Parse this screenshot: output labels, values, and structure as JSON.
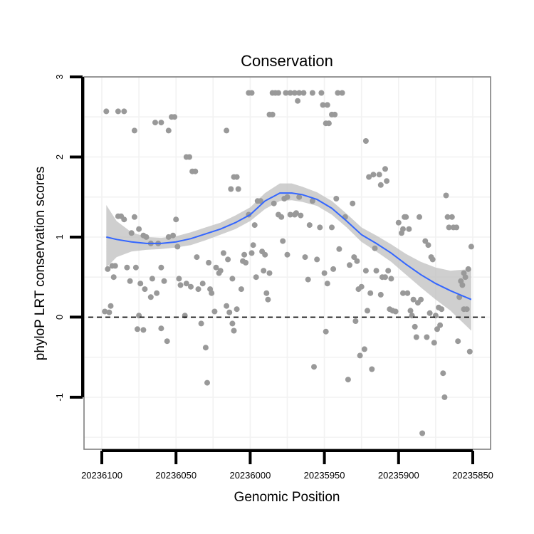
{
  "chart_data": {
    "type": "scatter",
    "title": "Conservation",
    "xlabel": "Genomic Position",
    "ylabel": "phyloP LRT conservation scores",
    "x_reversed": true,
    "xlim": [
      20236112,
      20235838
    ],
    "ylim": [
      -1.65,
      3.0
    ],
    "x_ticks": [
      20236100,
      20236050,
      20236000,
      20235950,
      20235900,
      20235850
    ],
    "x_tick_labels": [
      "20236100",
      "20236050",
      "20236000",
      "20235950",
      "20235900",
      "20235850"
    ],
    "y_ticks": [
      3,
      2,
      1,
      0,
      -1
    ],
    "y_tick_labels": [
      "3",
      "2",
      "1",
      "0",
      "-1"
    ],
    "reference_line": {
      "y": 0,
      "style": "dashed",
      "color": "#000000"
    },
    "colors": {
      "points": "#999999",
      "smooth": "#3366ff",
      "ribbon": "#bdbdbd",
      "grid": "#f2f2f2",
      "frame": "#7f7f7f"
    },
    "points": [
      [
        20236097,
        2.57
      ],
      [
        20236089,
        2.57
      ],
      [
        20236085,
        2.57
      ],
      [
        20236078,
        2.33
      ],
      [
        20236064,
        2.43
      ],
      [
        20236060,
        2.43
      ],
      [
        20236055,
        2.33
      ],
      [
        20236053,
        2.5
      ],
      [
        20236051,
        2.5
      ],
      [
        20236043,
        2.0
      ],
      [
        20236041,
        2.0
      ],
      [
        20236039,
        1.82
      ],
      [
        20236037,
        1.82
      ],
      [
        20236016,
        2.33
      ],
      [
        20236013,
        1.6
      ],
      [
        20236011,
        1.75
      ],
      [
        20236009,
        1.75
      ],
      [
        20236008,
        1.6
      ],
      [
        20236001,
        2.8
      ],
      [
        20235999,
        2.8
      ],
      [
        20235987,
        2.53
      ],
      [
        20235985,
        2.53
      ],
      [
        20235985,
        2.8
      ],
      [
        20235983,
        2.8
      ],
      [
        20235981,
        2.8
      ],
      [
        20235976,
        2.8
      ],
      [
        20235973,
        2.8
      ],
      [
        20235970,
        2.8
      ],
      [
        20235967,
        2.8
      ],
      [
        20235964,
        2.8
      ],
      [
        20235968,
        2.7
      ],
      [
        20235958,
        2.8
      ],
      [
        20235952,
        2.8
      ],
      [
        20235951,
        2.65
      ],
      [
        20235948,
        2.65
      ],
      [
        20235945,
        2.53
      ],
      [
        20235943,
        2.53
      ],
      [
        20235941,
        2.8
      ],
      [
        20235938,
        2.8
      ],
      [
        20235949,
        2.42
      ],
      [
        20235947,
        2.42
      ],
      [
        20235922,
        2.2
      ],
      [
        20235917,
        1.78
      ],
      [
        20235913,
        1.78
      ],
      [
        20235909,
        1.85
      ],
      [
        20235908,
        1.7
      ],
      [
        20235920,
        1.75
      ],
      [
        20235912,
        1.65
      ],
      [
        20236098,
        0.07
      ],
      [
        20236095,
        0.06
      ],
      [
        20236094,
        0.14
      ],
      [
        20236096,
        0.6
      ],
      [
        20236093,
        0.64
      ],
      [
        20236091,
        0.64
      ],
      [
        20236092,
        0.5
      ],
      [
        20236089,
        1.26
      ],
      [
        20236087,
        1.26
      ],
      [
        20236083,
        0.62
      ],
      [
        20236080,
        1.05
      ],
      [
        20236078,
        1.25
      ],
      [
        20236081,
        0.45
      ],
      [
        20236075,
        1.1
      ],
      [
        20236072,
        1.02
      ],
      [
        20236070,
        1.0
      ],
      [
        20236067,
        0.92
      ],
      [
        20236074,
        0.42
      ],
      [
        20236071,
        0.35
      ],
      [
        20236067,
        0.25
      ],
      [
        20236063,
        0.3
      ],
      [
        20236076,
        -0.15
      ],
      [
        20236072,
        -0.16
      ],
      [
        20236075,
        0.02
      ],
      [
        20236060,
        -0.14
      ],
      [
        20236056,
        -0.3
      ],
      [
        20236058,
        0.45
      ],
      [
        20236060,
        0.62
      ],
      [
        20236055,
        1.0
      ],
      [
        20236050,
        1.22
      ],
      [
        20236049,
        0.88
      ],
      [
        20236047,
        0.4
      ],
      [
        20236044,
        0.02
      ],
      [
        20236048,
        0.48
      ],
      [
        20236043,
        0.42
      ],
      [
        20236040,
        0.38
      ],
      [
        20236036,
        0.75
      ],
      [
        20236033,
        -0.08
      ],
      [
        20236032,
        0.42
      ],
      [
        20236030,
        -0.38
      ],
      [
        20236029,
        -0.82
      ],
      [
        20236027,
        0.35
      ],
      [
        20236026,
        0.3
      ],
      [
        20236021,
        0.55
      ],
      [
        20236024,
        0.07
      ],
      [
        20236020,
        0.58
      ],
      [
        20236018,
        0.8
      ],
      [
        20236015,
        0.72
      ],
      [
        20236012,
        0.48
      ],
      [
        20236016,
        0.14
      ],
      [
        20236014,
        0.06
      ],
      [
        20236012,
        -0.08
      ],
      [
        20236011,
        -0.17
      ],
      [
        20236009,
        0.1
      ],
      [
        20236006,
        0.35
      ],
      [
        20236005,
        0.7
      ],
      [
        20236003,
        0.68
      ],
      [
        20236001,
        1.28
      ],
      [
        20235999,
        0.8
      ],
      [
        20235997,
        1.15
      ],
      [
        20235995,
        1.45
      ],
      [
        20235993,
        1.45
      ],
      [
        20235992,
        0.82
      ],
      [
        20235990,
        0.78
      ],
      [
        20235991,
        0.58
      ],
      [
        20235989,
        0.3
      ],
      [
        20235988,
        0.22
      ],
      [
        20235987,
        0.55
      ],
      [
        20235984,
        1.42
      ],
      [
        20235981,
        1.28
      ],
      [
        20235979,
        1.25
      ],
      [
        20235977,
        1.48
      ],
      [
        20235975,
        1.5
      ],
      [
        20235975,
        0.78
      ],
      [
        20235973,
        1.28
      ],
      [
        20235970,
        1.28
      ],
      [
        20235969,
        1.3
      ],
      [
        20235967,
        1.5
      ],
      [
        20235963,
        0.75
      ],
      [
        20235960,
        1.15
      ],
      [
        20235958,
        1.45
      ],
      [
        20235957,
        -0.62
      ],
      [
        20235955,
        0.72
      ],
      [
        20235953,
        1.12
      ],
      [
        20235950,
        0.55
      ],
      [
        20235948,
        0.42
      ],
      [
        20235949,
        -0.18
      ],
      [
        20235945,
        1.12
      ],
      [
        20235942,
        1.48
      ],
      [
        20235936,
        1.25
      ],
      [
        20235933,
        0.65
      ],
      [
        20235931,
        1.42
      ],
      [
        20235934,
        -0.78
      ],
      [
        20235930,
        0.75
      ],
      [
        20235929,
        -0.05
      ],
      [
        20235927,
        0.35
      ],
      [
        20235926,
        -0.48
      ],
      [
        20235925,
        0.38
      ],
      [
        20235923,
        -0.4
      ],
      [
        20235922,
        0.58
      ],
      [
        20235921,
        0.08
      ],
      [
        20235919,
        0.3
      ],
      [
        20235918,
        -0.65
      ],
      [
        20235916,
        0.86
      ],
      [
        20235915,
        0.58
      ],
      [
        20235912,
        0.28
      ],
      [
        20235911,
        0.5
      ],
      [
        20235909,
        0.5
      ],
      [
        20235907,
        0.58
      ],
      [
        20235905,
        0.48
      ],
      [
        20235904,
        0.08
      ],
      [
        20235902,
        0.07
      ],
      [
        20235900,
        1.18
      ],
      [
        20235898,
        1.05
      ],
      [
        20235897,
        1.1
      ],
      [
        20235896,
        1.25
      ],
      [
        20235895,
        1.25
      ],
      [
        20235893,
        1.1
      ],
      [
        20235897,
        0.3
      ],
      [
        20235894,
        0.3
      ],
      [
        20235892,
        0.08
      ],
      [
        20235890,
        0.22
      ],
      [
        20235889,
        -0.12
      ],
      [
        20235888,
        -0.25
      ],
      [
        20235886,
        1.25
      ],
      [
        20235887,
        0.18
      ],
      [
        20235885,
        0.22
      ],
      [
        20235884,
        -1.45
      ],
      [
        20235882,
        0.95
      ],
      [
        20235881,
        -0.25
      ],
      [
        20235880,
        0.9
      ],
      [
        20235879,
        0.05
      ],
      [
        20235878,
        0.75
      ],
      [
        20235877,
        0.72
      ],
      [
        20235876,
        -0.32
      ],
      [
        20235875,
        0.02
      ],
      [
        20235873,
        0.12
      ],
      [
        20235871,
        0.1
      ],
      [
        20235870,
        -0.7
      ],
      [
        20235869,
        -1.0
      ],
      [
        20235868,
        1.52
      ],
      [
        20235867,
        1.25
      ],
      [
        20235866,
        1.12
      ],
      [
        20235864,
        1.25
      ],
      [
        20235863,
        1.12
      ],
      [
        20235861,
        1.12
      ],
      [
        20235860,
        -0.3
      ],
      [
        20235858,
        0.45
      ],
      [
        20235857,
        0.4
      ],
      [
        20235856,
        0.55
      ],
      [
        20235855,
        0.5
      ],
      [
        20235854,
        0.1
      ],
      [
        20235853,
        0.6
      ],
      [
        20235852,
        -0.43
      ],
      [
        20235851,
        0.88
      ],
      [
        20235856,
        0.1
      ],
      [
        20235859,
        0.25
      ],
      [
        20235872,
        -0.1
      ],
      [
        20235874,
        -0.15
      ],
      [
        20235891,
        0.02
      ],
      [
        20235906,
        0.1
      ],
      [
        20235928,
        0.7
      ],
      [
        20235940,
        0.85
      ],
      [
        20235944,
        0.6
      ],
      [
        20235961,
        0.47
      ],
      [
        20235966,
        1.27
      ],
      [
        20235978,
        0.95
      ],
      [
        20235996,
        0.5
      ],
      [
        20235998,
        0.9
      ],
      [
        20236004,
        0.78
      ],
      [
        20236023,
        0.62
      ],
      [
        20236028,
        0.68
      ],
      [
        20236035,
        0.35
      ],
      [
        20236052,
        1.02
      ],
      [
        20236062,
        0.92
      ],
      [
        20236066,
        0.48
      ],
      [
        20236085,
        1.22
      ],
      [
        20236077,
        0.62
      ]
    ],
    "smooth": {
      "method": "loess",
      "x": [
        20236097,
        20236090,
        20236080,
        20236070,
        20236060,
        20236050,
        20236040,
        20236030,
        20236020,
        20236010,
        20236000,
        20235990,
        20235980,
        20235972,
        20235965,
        20235955,
        20235945,
        20235935,
        20235925,
        20235915,
        20235905,
        20235895,
        20235885,
        20235875,
        20235865,
        20235851
      ],
      "y": [
        1.0,
        0.97,
        0.94,
        0.92,
        0.92,
        0.94,
        0.98,
        1.04,
        1.1,
        1.18,
        1.28,
        1.45,
        1.55,
        1.55,
        1.53,
        1.47,
        1.36,
        1.2,
        1.03,
        0.92,
        0.8,
        0.66,
        0.53,
        0.42,
        0.33,
        0.22
      ],
      "lower": [
        0.62,
        0.75,
        0.82,
        0.84,
        0.85,
        0.87,
        0.9,
        0.96,
        1.03,
        1.1,
        1.2,
        1.35,
        1.45,
        1.46,
        1.44,
        1.39,
        1.28,
        1.12,
        0.94,
        0.82,
        0.69,
        0.53,
        0.37,
        0.22,
        0.08,
        -0.17
      ],
      "upper": [
        1.4,
        1.2,
        1.06,
        1.0,
        0.99,
        1.01,
        1.06,
        1.12,
        1.18,
        1.27,
        1.37,
        1.55,
        1.67,
        1.67,
        1.63,
        1.56,
        1.45,
        1.29,
        1.12,
        1.02,
        0.91,
        0.79,
        0.69,
        0.62,
        0.58,
        0.6
      ]
    }
  }
}
